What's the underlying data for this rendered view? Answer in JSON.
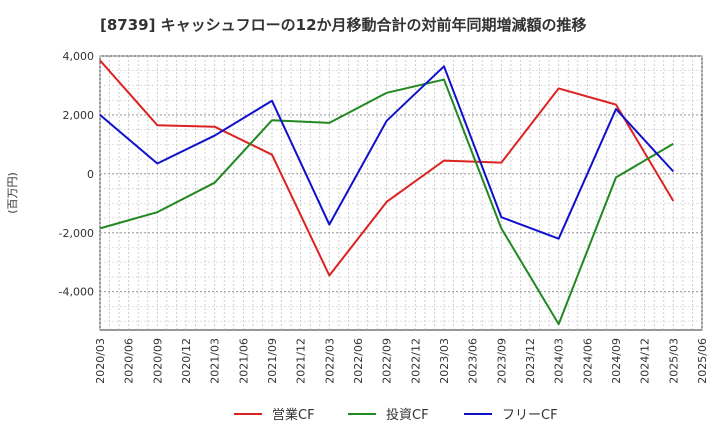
{
  "chart_data": {
    "type": "line",
    "title": "[8739]  キャッシュフローの12か月移動合計の対前年同期増減額の推移",
    "ylabel": "(百万円)",
    "xlabel": "",
    "ylim": [
      -5300,
      4000
    ],
    "yticks": [
      4000,
      2000,
      0,
      -2000,
      -4000
    ],
    "ytick_labels": [
      "4,000",
      "2,000",
      "0",
      "-2,000",
      "-4,000"
    ],
    "x_tick_labels": [
      "2020/03",
      "2020/06",
      "2020/09",
      "2020/12",
      "2021/03",
      "2021/06",
      "2021/09",
      "2021/12",
      "2022/03",
      "2022/06",
      "2022/09",
      "2022/12",
      "2023/03",
      "2023/06",
      "2023/09",
      "2023/12",
      "2024/03",
      "2024/06",
      "2024/09",
      "2024/12",
      "2025/03",
      "2025/06"
    ],
    "x": [
      "2020/03",
      "2020/09",
      "2021/03",
      "2021/09",
      "2022/03",
      "2022/09",
      "2023/03",
      "2023/09",
      "2024/03",
      "2024/09",
      "2025/03"
    ],
    "series": [
      {
        "name": "営業CF",
        "color": "#dd2222",
        "values": [
          3850,
          1650,
          1600,
          650,
          -3450,
          -950,
          450,
          380,
          2900,
          2350,
          -920
        ]
      },
      {
        "name": "投資CF",
        "color": "#228822",
        "values": [
          -1850,
          -1300,
          -300,
          1820,
          1730,
          2750,
          3200,
          -1850,
          -5100,
          -120,
          1020
        ]
      },
      {
        "name": "フリーCF",
        "color": "#1111cc",
        "values": [
          2000,
          350,
          1300,
          2480,
          -1720,
          1800,
          3650,
          -1470,
          -2200,
          2200,
          80
        ]
      }
    ],
    "grid": true,
    "legend_position": "bottom-center"
  }
}
